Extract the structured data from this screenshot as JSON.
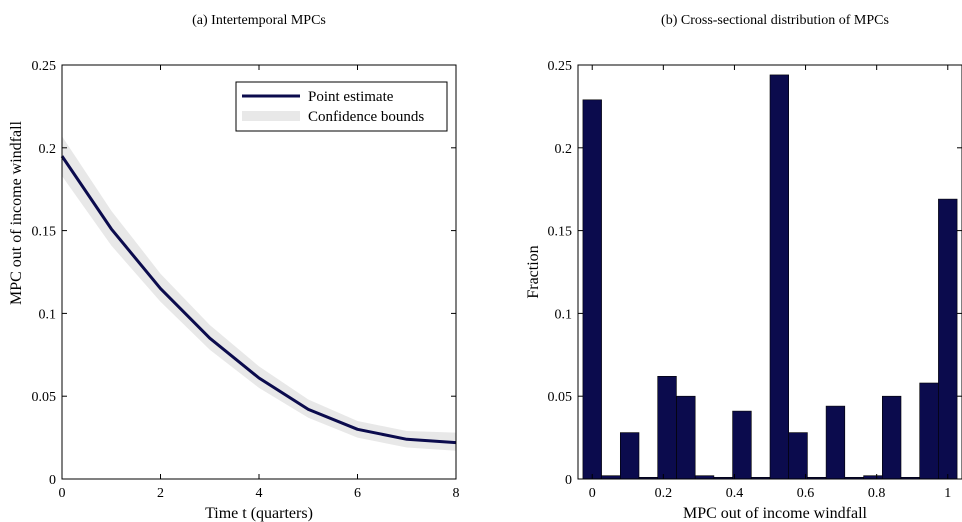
{
  "chart_data": [
    {
      "type": "line",
      "title": "(a) Intertemporal MPCs",
      "xlabel": "Time t (quarters)",
      "ylabel": "MPC out of income windfall",
      "xlim": [
        0,
        8
      ],
      "ylim": [
        0,
        0.25
      ],
      "xticks": [
        0,
        2,
        4,
        6,
        8
      ],
      "xtick_labels": [
        "0",
        "2",
        "4",
        "6",
        "8"
      ],
      "yticks": [
        0,
        0.05,
        0.1,
        0.15,
        0.2,
        0.25
      ],
      "ytick_labels": [
        "0",
        "0.05",
        "0.1",
        "0.15",
        "0.2",
        "0.25"
      ],
      "legend_position": "top-right",
      "x": [
        0,
        1,
        2,
        3,
        4,
        5,
        6,
        7,
        8
      ],
      "series": [
        {
          "name": "Point estimate",
          "color": "#0b0b4d",
          "values": [
            0.195,
            0.151,
            0.115,
            0.085,
            0.061,
            0.042,
            0.03,
            0.024,
            0.022
          ]
        },
        {
          "name": "Confidence bounds",
          "color": "#e8e8e8",
          "lower": [
            0.183,
            0.141,
            0.107,
            0.078,
            0.055,
            0.037,
            0.025,
            0.019,
            0.017
          ],
          "upper": [
            0.207,
            0.162,
            0.124,
            0.093,
            0.068,
            0.048,
            0.035,
            0.029,
            0.028
          ]
        }
      ]
    },
    {
      "type": "bar",
      "title": "(b) Cross-sectional distribution of MPCs",
      "xlabel": "MPC out of income windfall",
      "ylabel": "Fraction",
      "xlim": [
        -0.04,
        1.04
      ],
      "ylim": [
        0,
        0.25
      ],
      "xticks": [
        0,
        0.2,
        0.4,
        0.6,
        0.8,
        1
      ],
      "xtick_labels": [
        "0",
        "0.2",
        "0.4",
        "0.6",
        "0.8",
        "1"
      ],
      "yticks": [
        0,
        0.05,
        0.1,
        0.15,
        0.2,
        0.25
      ],
      "ytick_labels": [
        "0",
        "0.05",
        "0.1",
        "0.15",
        "0.2",
        "0.25"
      ],
      "color": "#0b0b4d",
      "bin_width": 0.0526,
      "bin_centers": [
        0,
        0.0526,
        0.1053,
        0.1579,
        0.2105,
        0.2632,
        0.3158,
        0.3684,
        0.4211,
        0.4737,
        0.5263,
        0.5789,
        0.6316,
        0.6842,
        0.7368,
        0.7895,
        0.8421,
        0.8947,
        0.9474,
        1.0
      ],
      "values": [
        0.229,
        0.002,
        0.028,
        0.001,
        0.062,
        0.05,
        0.002,
        0.001,
        0.041,
        0.001,
        0.244,
        0.028,
        0.001,
        0.044,
        0.001,
        0.002,
        0.05,
        0.001,
        0.058,
        0.169
      ]
    }
  ]
}
